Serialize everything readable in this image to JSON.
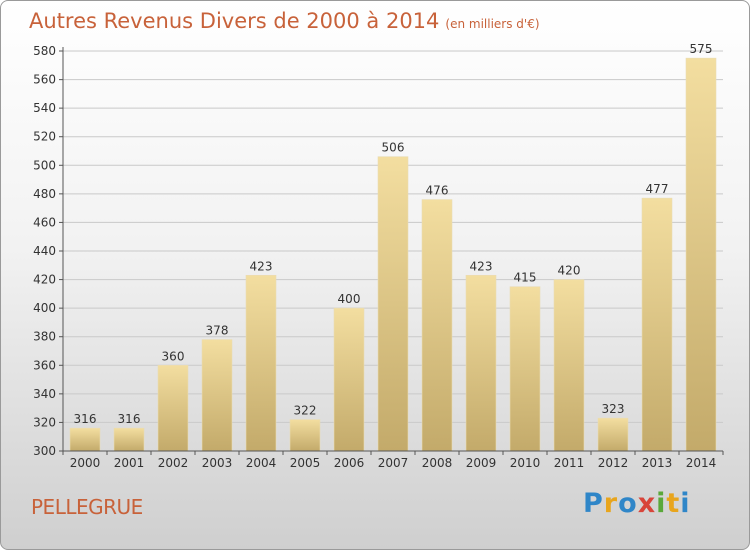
{
  "title": "Autres Revenus Divers de 2000 à 2014",
  "unit_note": "(en milliers d'€)",
  "place_name": "PELLEGRUE",
  "logo": {
    "text": "Proxiti",
    "letters": [
      {
        "ch": "P",
        "color": "#2f86c8"
      },
      {
        "ch": "r",
        "color": "#e8a51d"
      },
      {
        "ch": "o",
        "color": "#2f86c8"
      },
      {
        "ch": "x",
        "color": "#d8453a"
      },
      {
        "ch": "i",
        "color": "#5aa83a"
      },
      {
        "ch": "t",
        "color": "#e8a51d"
      },
      {
        "ch": "i",
        "color": "#2f86c8"
      }
    ]
  },
  "chart_data": {
    "type": "bar",
    "title": "Autres Revenus Divers de 2000 à 2014",
    "categories": [
      "2000",
      "2001",
      "2002",
      "2003",
      "2004",
      "2005",
      "2006",
      "2007",
      "2008",
      "2009",
      "2010",
      "2011",
      "2012",
      "2013",
      "2014"
    ],
    "values": [
      316,
      316,
      360,
      378,
      423,
      322,
      400,
      506,
      476,
      423,
      415,
      420,
      323,
      477,
      575
    ],
    "ylim": [
      300,
      580
    ],
    "yticks": [
      300,
      320,
      340,
      360,
      380,
      400,
      420,
      440,
      460,
      480,
      500,
      520,
      540,
      560,
      580
    ],
    "grid": true,
    "bar_color_light": "#f3dea0",
    "bar_color_dark": "#c3aa6a"
  }
}
